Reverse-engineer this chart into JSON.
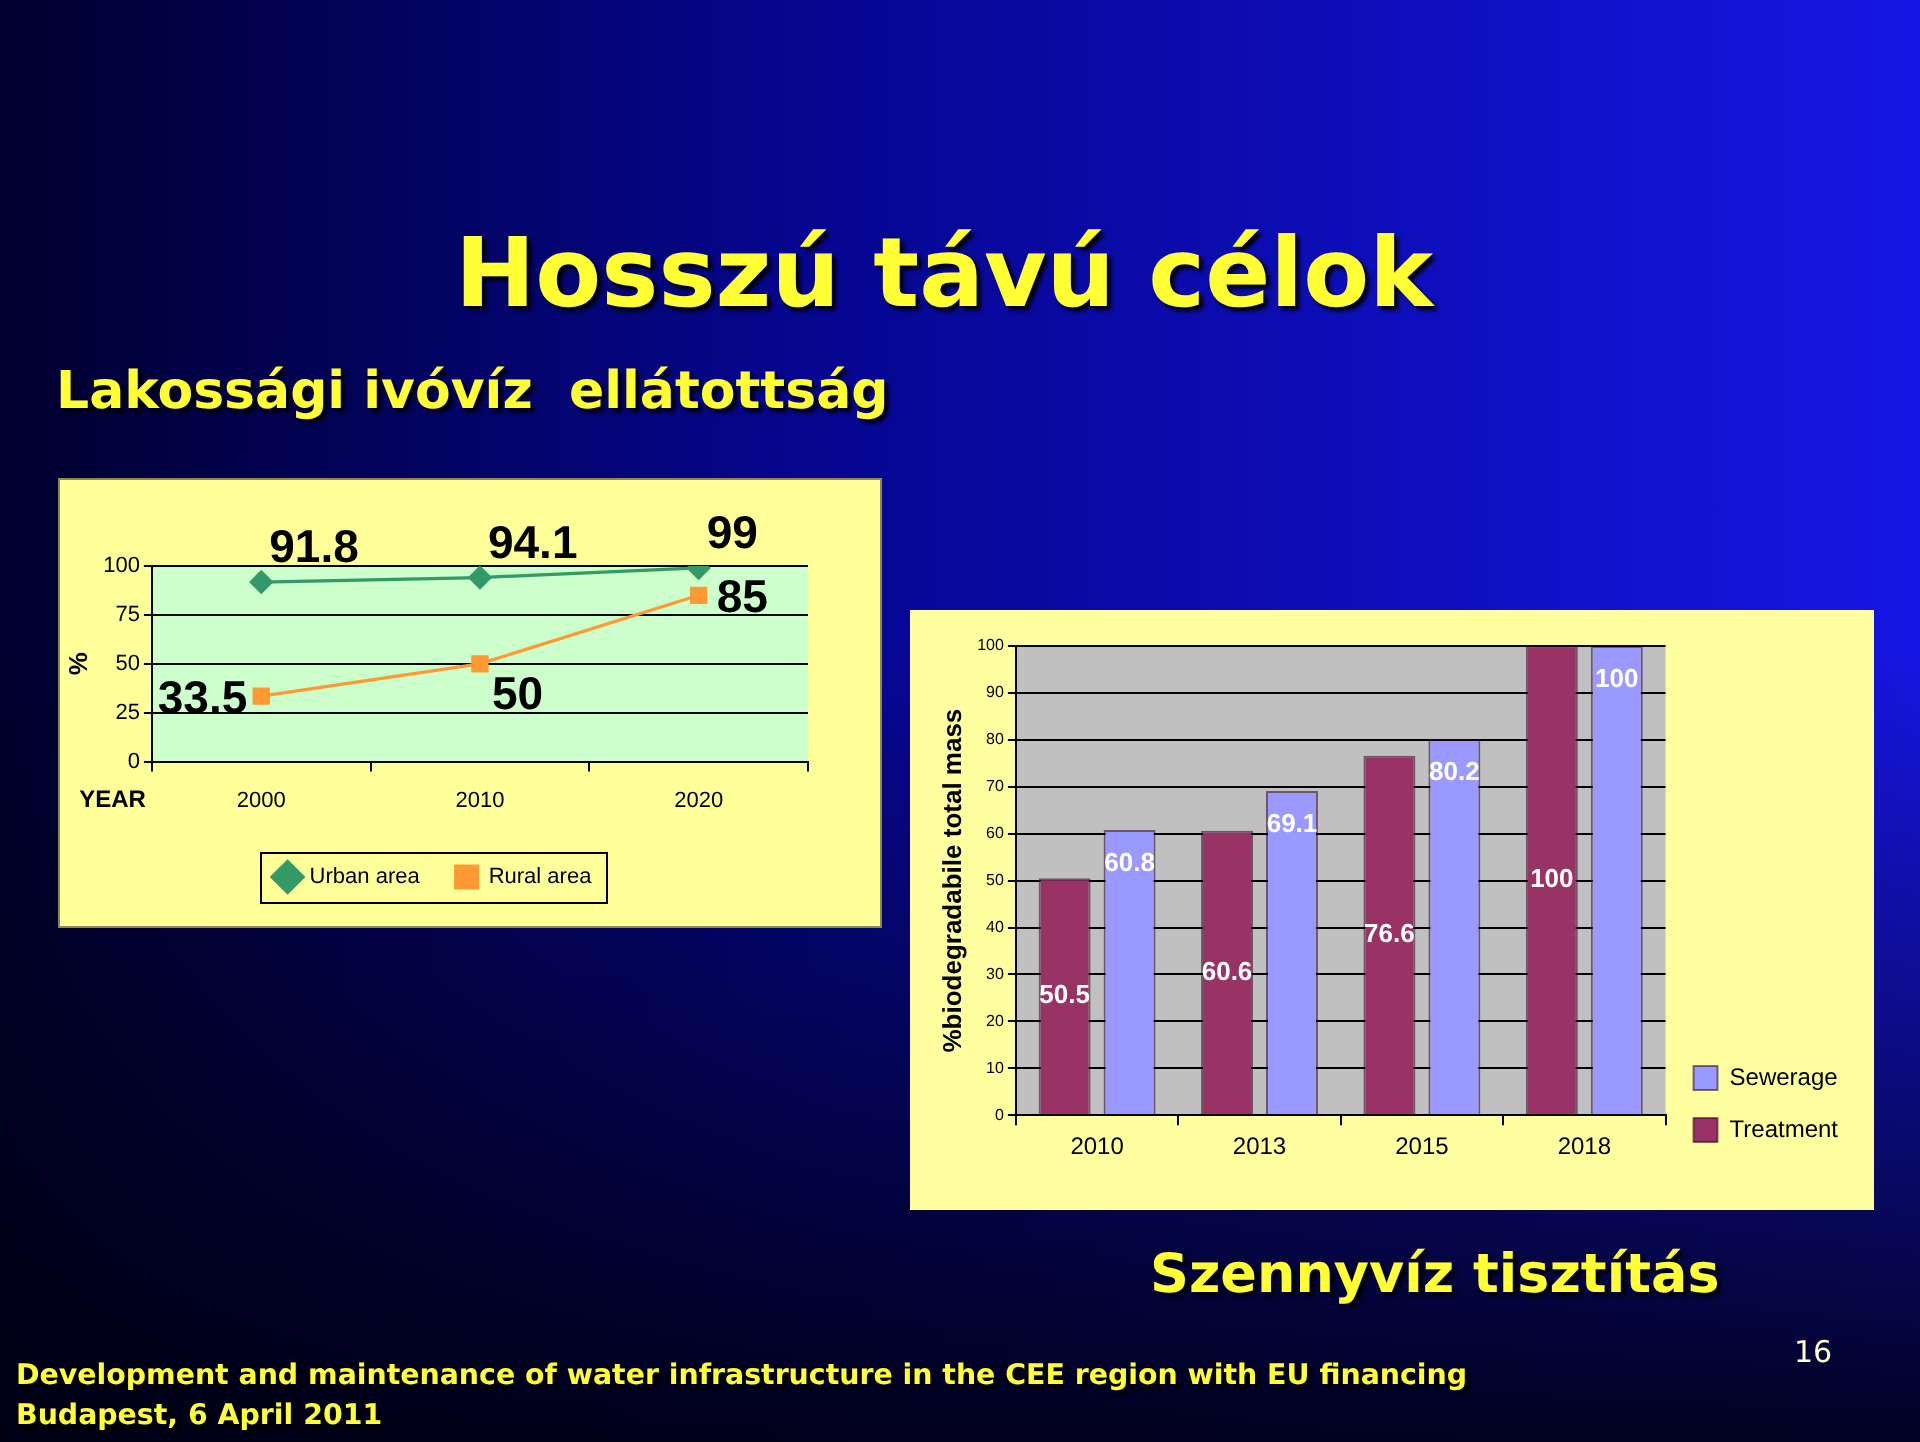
{
  "chart_data": [
    {
      "type": "line",
      "title": "Hosszú távú célok",
      "subtitle": "Lakossági ivóvíz  ellátottság",
      "xlabel": "YEAR",
      "ylabel": "%",
      "categories": [
        "2000",
        "2010",
        "2020"
      ],
      "series": [
        {
          "name": "Urban area",
          "color": "#339966",
          "marker": "diamond",
          "values": [
            91.8,
            94.1,
            99
          ]
        },
        {
          "name": "Rural area",
          "color": "#ff9933",
          "marker": "square",
          "values": [
            33.5,
            50,
            85
          ]
        }
      ],
      "ylim": [
        0,
        100
      ],
      "yticks": [
        0,
        25,
        50,
        75,
        100
      ],
      "grid": "y",
      "legend": "bottom",
      "data_labels": true
    },
    {
      "type": "bar",
      "title": "Szennyvíz tisztítás",
      "ylabel": "%biodegradabile total mass",
      "categories": [
        "2010",
        "2013",
        "2015",
        "2018"
      ],
      "series": [
        {
          "name": "Treatment",
          "color": "#993366",
          "values": [
            50.5,
            60.6,
            76.6,
            100
          ]
        },
        {
          "name": "Sewerage",
          "color": "#9999ff",
          "values": [
            60.8,
            69.1,
            80.2,
            100
          ]
        }
      ],
      "ylim": [
        0,
        100
      ],
      "yticks": [
        0,
        10,
        20,
        30,
        40,
        50,
        60,
        70,
        80,
        90,
        100
      ],
      "grid": "y",
      "legend": "right",
      "data_labels": true,
      "annotations": [
        "Development and maintenance of water infrastructure in the CEE region with EU financing",
        "Budapest, 6 April 2011",
        "16"
      ]
    }
  ]
}
